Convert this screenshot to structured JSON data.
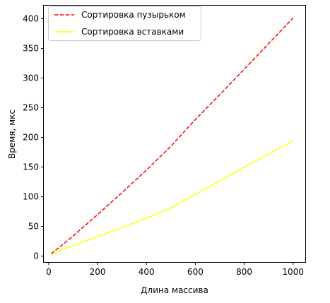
{
  "chart_data": {
    "type": "line",
    "title": "",
    "xlabel": "Длина массива",
    "ylabel": "Время, мкс",
    "xlim": [
      -20,
      1050
    ],
    "ylim": [
      -10,
      422
    ],
    "x_ticks": [
      0,
      200,
      400,
      600,
      800,
      1000
    ],
    "y_ticks": [
      0,
      50,
      100,
      150,
      200,
      250,
      300,
      350,
      400
    ],
    "grid": false,
    "legend_position": "top-left",
    "series": [
      {
        "name": "Сортировка пузырьком",
        "color": "#ff0000",
        "dash": "dashed",
        "x": [
          10,
          50,
          100,
          200,
          300,
          400,
          500,
          600,
          700,
          800,
          900,
          1000
        ],
        "y": [
          4,
          17,
          34,
          70,
          107,
          145,
          185,
          230,
          272,
          315,
          358,
          401
        ]
      },
      {
        "name": "Сортировка вставками",
        "color": "#ffff00",
        "dash": "solid",
        "x": [
          10,
          50,
          100,
          200,
          300,
          400,
          500,
          600,
          700,
          800,
          900,
          1000
        ],
        "y": [
          2,
          10,
          18,
          33,
          48,
          64,
          81,
          104,
          127,
          150,
          172,
          194
        ]
      }
    ]
  }
}
